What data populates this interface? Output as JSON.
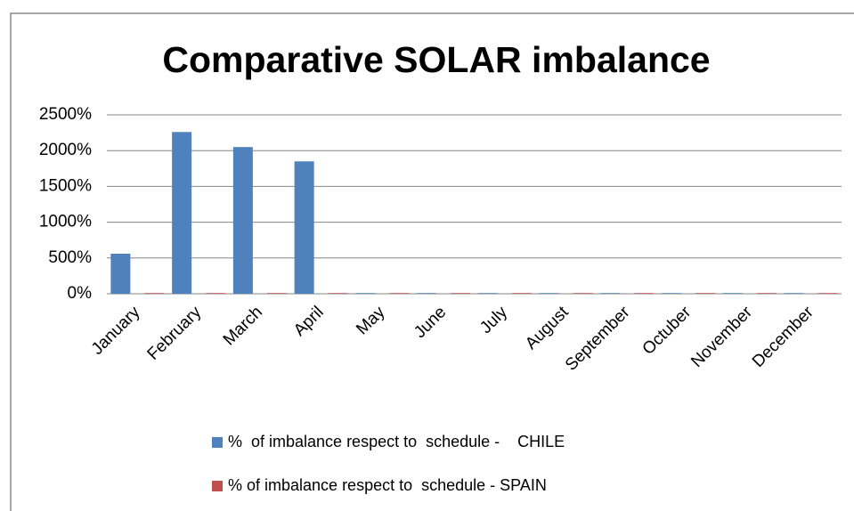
{
  "chart_data": {
    "type": "bar",
    "title": "Comparative SOLAR imbalance",
    "categories": [
      "January",
      "February",
      "March",
      "April",
      "May",
      "June",
      "July",
      "August",
      "September",
      "Octuber",
      "November",
      "December"
    ],
    "series": [
      {
        "name": "%  of imbalance respect to  schedule -    CHILE",
        "color": "#4f81bd",
        "values": [
          560,
          2260,
          2050,
          1850,
          10,
          10,
          10,
          10,
          10,
          10,
          10,
          10
        ]
      },
      {
        "name": "% of imbalance respect to  schedule - SPAIN",
        "color": "#c0504d",
        "values": [
          10,
          10,
          10,
          10,
          10,
          10,
          10,
          10,
          10,
          10,
          10,
          10
        ]
      }
    ],
    "ylim": [
      0,
      2500
    ],
    "yticks": [
      {
        "value": 0,
        "label": "0%"
      },
      {
        "value": 500,
        "label": "500%"
      },
      {
        "value": 1000,
        "label": "1000%"
      },
      {
        "value": 1500,
        "label": "1500%"
      },
      {
        "value": 2000,
        "label": "2000%"
      },
      {
        "value": 2500,
        "label": "2500%"
      }
    ],
    "grid": true,
    "legend": "bottom"
  }
}
